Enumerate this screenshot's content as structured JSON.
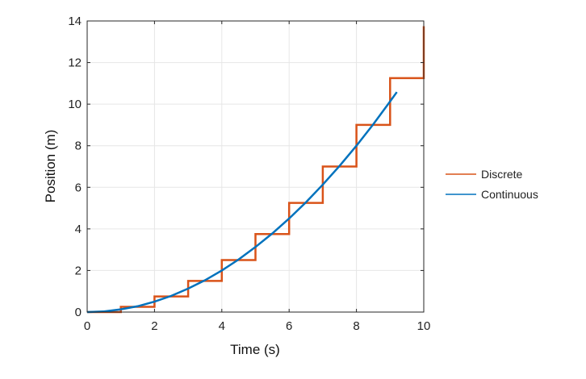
{
  "chart_data": {
    "type": "line",
    "title": "",
    "xlabel": "Time (s)",
    "ylabel": "Position (m)",
    "xlim": [
      0,
      10
    ],
    "ylim": [
      0,
      14
    ],
    "xticks": [
      "0",
      "2",
      "4",
      "6",
      "8",
      "10"
    ],
    "yticks": [
      "0",
      "2",
      "4",
      "6",
      "8",
      "10",
      "12",
      "14"
    ],
    "grid": true,
    "legend_placement": "outside-right",
    "series": [
      {
        "name": "Discrete",
        "style": "stairs",
        "color": "#D95319",
        "x": [
          0,
          1,
          2,
          3,
          4,
          5,
          6,
          7,
          8,
          9,
          10
        ],
        "y": [
          0,
          0.25,
          0.75,
          1.5,
          2.5,
          3.75,
          5.25,
          7,
          9,
          11.25,
          13.75
        ]
      },
      {
        "name": "Continuous",
        "style": "line",
        "color": "#0072BD",
        "x": [
          0,
          0.5,
          1,
          1.5,
          2,
          2.5,
          3,
          3.5,
          4,
          4.5,
          5,
          5.5,
          6,
          6.5,
          7,
          7.5,
          8,
          8.5,
          9,
          9.2
        ],
        "y": [
          0,
          0.03,
          0.13,
          0.28,
          0.5,
          0.78,
          1.13,
          1.53,
          2,
          2.53,
          3.13,
          3.78,
          4.5,
          5.28,
          6.13,
          7.03,
          8,
          9.03,
          10.13,
          10.58
        ]
      }
    ]
  }
}
